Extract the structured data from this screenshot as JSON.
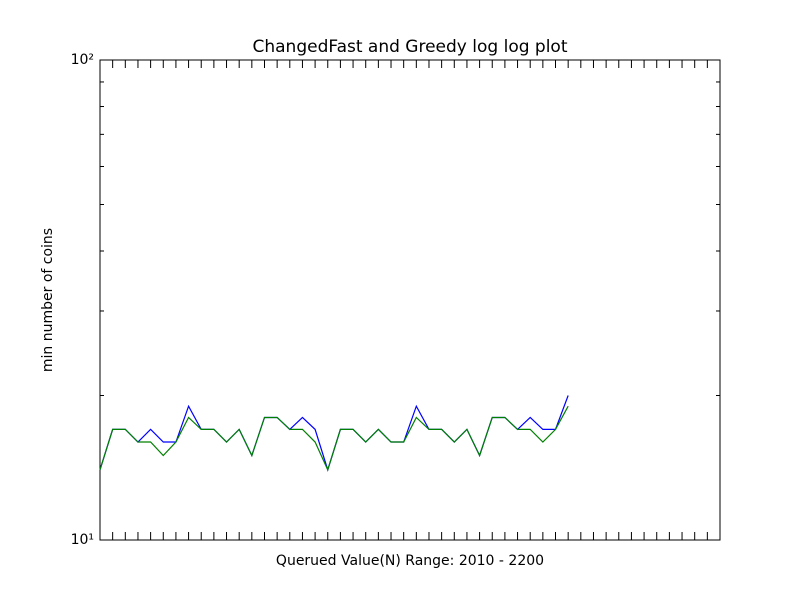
{
  "chart_data": {
    "type": "line",
    "title": "ChangedFast and Greedy log log plot",
    "x_label": "Querued Value(N) Range: 2010 - 2200",
    "y_label": "min number of coins",
    "x": [
      0,
      1,
      2,
      3,
      4,
      5,
      6,
      7,
      8,
      9,
      10,
      11,
      12,
      13,
      14,
      15,
      16,
      17,
      18,
      19,
      20,
      21,
      22,
      23,
      24,
      25,
      26,
      27,
      28,
      29,
      30,
      31,
      32,
      33,
      34,
      35,
      36,
      37
    ],
    "series": [
      {
        "name": "ChangedFast",
        "color": "#0000ff",
        "values": [
          14,
          17,
          17,
          16,
          17,
          16,
          16,
          19,
          17,
          17,
          16,
          17,
          15,
          18,
          18,
          17,
          18,
          17,
          14,
          17,
          17,
          16,
          17,
          16,
          16,
          19,
          17,
          17,
          16,
          17,
          15,
          18,
          18,
          17,
          18,
          17,
          17,
          20
        ]
      },
      {
        "name": "Greedy",
        "color": "#008000",
        "values": [
          14,
          17,
          17,
          16,
          16,
          15,
          16,
          18,
          17,
          17,
          16,
          17,
          15,
          18,
          18,
          17,
          17,
          16,
          14,
          17,
          17,
          16,
          17,
          16,
          16,
          18,
          17,
          17,
          16,
          17,
          15,
          18,
          18,
          17,
          17,
          16,
          17,
          19
        ]
      }
    ],
    "xlim": [
      0,
      49
    ],
    "xticks": [
      0,
      1,
      2,
      3,
      4,
      5,
      6,
      7,
      8,
      9,
      10,
      11,
      12,
      13,
      14,
      15,
      16,
      17,
      18,
      19,
      20,
      21,
      22,
      23,
      24,
      25,
      26,
      27,
      28,
      29,
      30,
      31,
      32,
      33,
      34,
      35,
      36,
      37,
      38,
      39,
      40,
      41,
      42,
      43,
      44,
      45,
      46,
      47,
      48,
      49
    ],
    "ylim": [
      10,
      100
    ],
    "yscale": "log",
    "yticks": [
      {
        "value": 10,
        "label": "10¹"
      },
      {
        "value": 100,
        "label": "10²"
      }
    ],
    "yminorticks": [
      20,
      30,
      40,
      50,
      60,
      70,
      80,
      90
    ]
  }
}
